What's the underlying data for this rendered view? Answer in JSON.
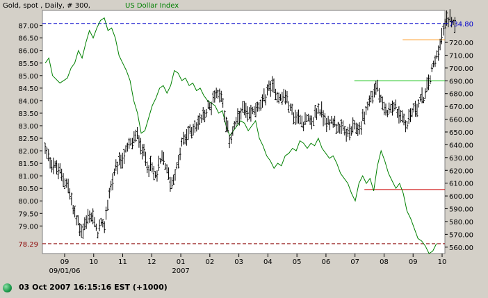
{
  "title": {
    "gold_part": "Gold, spot , Daily, # 300,",
    "usd_part": "US Dollar Index"
  },
  "status": {
    "text": "03 Oct 2007 16:15:16  EST (+1000)"
  },
  "colors": {
    "gold_bars": "#000000",
    "usd_line": "#008000",
    "resistance": "#0000cc",
    "support": "#8b0000",
    "orange_level": "#ff8c00",
    "green_level": "#00bb00",
    "red_level": "#cc0000"
  },
  "chart_data": {
    "type": "line",
    "title": "Gold, spot , Daily, # 300, US Dollar Index",
    "x_tick_labels": [
      "09",
      "10",
      "11",
      "12",
      "01",
      "02",
      "03",
      "04",
      "05",
      "06",
      "07",
      "08",
      "09",
      "10"
    ],
    "x_sub_labels": [
      "09/01/06",
      "2007"
    ],
    "left_axis": {
      "label": "US Dollar Index",
      "ylim": [
        77.9,
        87.6
      ],
      "ticks": [
        "87.00",
        "86.50",
        "86.00",
        "85.50",
        "85.00",
        "84.50",
        "84.00",
        "83.50",
        "83.00",
        "82.50",
        "82.00",
        "81.50",
        "81.00",
        "80.50",
        "80.00",
        "79.50",
        "79.00"
      ],
      "marker": "78.29"
    },
    "right_axis": {
      "label": "Gold",
      "ylim": [
        555,
        745
      ],
      "ticks": [
        "720.00",
        "710.00",
        "700.00",
        "690.00",
        "680.00",
        "670.00",
        "660.00",
        "650.00",
        "640.00",
        "630.00",
        "620.00",
        "610.00",
        "600.00",
        "590.00",
        "580.00",
        "570.00",
        "560.00"
      ],
      "marker": "734.80"
    },
    "reference_lines": [
      {
        "name": "resistance",
        "axis": "right",
        "value": 734.8,
        "style": "dashed",
        "from": 0.0,
        "to": 1.0
      },
      {
        "name": "support",
        "axis": "left",
        "value": 78.29,
        "style": "dashed",
        "from": 0.0,
        "to": 1.0
      },
      {
        "name": "orange_level",
        "axis": "right",
        "value": 722,
        "style": "solid",
        "from": 0.895,
        "to": 1.0
      },
      {
        "name": "green_level",
        "axis": "right",
        "value": 690,
        "style": "solid",
        "from": 0.775,
        "to": 1.0
      },
      {
        "name": "red_level",
        "axis": "right",
        "value": 605,
        "style": "solid",
        "from": 0.8,
        "to": 1.0
      }
    ],
    "series": [
      {
        "name": "US Dollar Index",
        "axis": "left",
        "kind": "line",
        "points": [
          [
            0.0,
            85.5
          ],
          [
            0.01,
            85.7
          ],
          [
            0.02,
            85.0
          ],
          [
            0.04,
            84.7
          ],
          [
            0.06,
            84.9
          ],
          [
            0.07,
            85.3
          ],
          [
            0.08,
            85.5
          ],
          [
            0.09,
            86.0
          ],
          [
            0.1,
            85.7
          ],
          [
            0.11,
            86.3
          ],
          [
            0.12,
            86.8
          ],
          [
            0.13,
            86.5
          ],
          [
            0.14,
            86.9
          ],
          [
            0.15,
            87.2
          ],
          [
            0.16,
            87.3
          ],
          [
            0.17,
            86.8
          ],
          [
            0.18,
            86.9
          ],
          [
            0.19,
            86.5
          ],
          [
            0.2,
            85.8
          ],
          [
            0.21,
            85.5
          ],
          [
            0.22,
            85.2
          ],
          [
            0.23,
            84.8
          ],
          [
            0.24,
            84.0
          ],
          [
            0.25,
            83.5
          ],
          [
            0.26,
            82.7
          ],
          [
            0.27,
            82.8
          ],
          [
            0.28,
            83.3
          ],
          [
            0.29,
            83.8
          ],
          [
            0.3,
            84.1
          ],
          [
            0.31,
            84.5
          ],
          [
            0.32,
            84.6
          ],
          [
            0.33,
            84.3
          ],
          [
            0.34,
            84.6
          ],
          [
            0.35,
            85.2
          ],
          [
            0.36,
            85.1
          ],
          [
            0.37,
            84.8
          ],
          [
            0.38,
            84.9
          ],
          [
            0.39,
            84.6
          ],
          [
            0.4,
            84.7
          ],
          [
            0.41,
            84.4
          ],
          [
            0.42,
            84.5
          ],
          [
            0.43,
            84.2
          ],
          [
            0.44,
            84.0
          ],
          [
            0.45,
            83.9
          ],
          [
            0.46,
            83.8
          ],
          [
            0.47,
            83.5
          ],
          [
            0.48,
            83.6
          ],
          [
            0.49,
            83.0
          ],
          [
            0.5,
            82.6
          ],
          [
            0.51,
            82.8
          ],
          [
            0.52,
            83.0
          ],
          [
            0.53,
            83.2
          ],
          [
            0.54,
            83.1
          ],
          [
            0.55,
            82.8
          ],
          [
            0.56,
            83.0
          ],
          [
            0.57,
            83.2
          ],
          [
            0.58,
            82.5
          ],
          [
            0.59,
            82.2
          ],
          [
            0.6,
            81.8
          ],
          [
            0.61,
            81.6
          ],
          [
            0.62,
            81.3
          ],
          [
            0.63,
            81.5
          ],
          [
            0.64,
            81.4
          ],
          [
            0.65,
            81.8
          ],
          [
            0.66,
            81.9
          ],
          [
            0.67,
            82.1
          ],
          [
            0.68,
            82.0
          ],
          [
            0.69,
            82.4
          ],
          [
            0.7,
            82.3
          ],
          [
            0.71,
            82.1
          ],
          [
            0.72,
            82.3
          ],
          [
            0.73,
            82.2
          ],
          [
            0.74,
            82.5
          ],
          [
            0.75,
            82.1
          ],
          [
            0.76,
            81.9
          ],
          [
            0.77,
            81.7
          ],
          [
            0.78,
            81.8
          ],
          [
            0.79,
            81.5
          ],
          [
            0.8,
            81.1
          ],
          [
            0.81,
            80.9
          ],
          [
            0.82,
            80.7
          ],
          [
            0.83,
            80.3
          ],
          [
            0.84,
            80.0
          ],
          [
            0.85,
            80.7
          ],
          [
            0.86,
            81.0
          ],
          [
            0.87,
            80.7
          ],
          [
            0.88,
            80.9
          ],
          [
            0.89,
            80.4
          ],
          [
            0.9,
            81.4
          ],
          [
            0.91,
            82.0
          ],
          [
            0.92,
            81.6
          ],
          [
            0.93,
            81.1
          ],
          [
            0.94,
            80.8
          ],
          [
            0.95,
            80.5
          ],
          [
            0.96,
            80.7
          ],
          [
            0.97,
            80.3
          ],
          [
            0.98,
            79.6
          ],
          [
            0.99,
            79.3
          ],
          [
            1.0,
            78.9
          ],
          [
            1.01,
            78.5
          ],
          [
            1.02,
            78.4
          ],
          [
            1.03,
            78.2
          ],
          [
            1.04,
            77.9
          ],
          [
            1.05,
            78.0
          ],
          [
            1.06,
            78.3
          ]
        ]
      },
      {
        "name": "Gold",
        "axis": "right",
        "kind": "ohlc",
        "path": [
          [
            0.0,
            637
          ],
          [
            0.02,
            625
          ],
          [
            0.04,
            618
          ],
          [
            0.06,
            610
          ],
          [
            0.08,
            585
          ],
          [
            0.1,
            572
          ],
          [
            0.12,
            585
          ],
          [
            0.13,
            583
          ],
          [
            0.14,
            570
          ],
          [
            0.15,
            577
          ],
          [
            0.16,
            575
          ],
          [
            0.17,
            597
          ],
          [
            0.18,
            610
          ],
          [
            0.19,
            618
          ],
          [
            0.2,
            625
          ],
          [
            0.21,
            630
          ],
          [
            0.22,
            635
          ],
          [
            0.23,
            640
          ],
          [
            0.24,
            643
          ],
          [
            0.25,
            648
          ],
          [
            0.26,
            640
          ],
          [
            0.27,
            630
          ],
          [
            0.28,
            625
          ],
          [
            0.29,
            620
          ],
          [
            0.3,
            615
          ],
          [
            0.31,
            625
          ],
          [
            0.32,
            630
          ],
          [
            0.33,
            620
          ],
          [
            0.34,
            610
          ],
          [
            0.35,
            615
          ],
          [
            0.36,
            625
          ],
          [
            0.37,
            640
          ],
          [
            0.38,
            645
          ],
          [
            0.39,
            650
          ],
          [
            0.4,
            652
          ],
          [
            0.41,
            655
          ],
          [
            0.42,
            660
          ],
          [
            0.43,
            662
          ],
          [
            0.44,
            668
          ],
          [
            0.45,
            672
          ],
          [
            0.46,
            680
          ],
          [
            0.47,
            683
          ],
          [
            0.48,
            675
          ],
          [
            0.49,
            655
          ],
          [
            0.5,
            645
          ],
          [
            0.51,
            652
          ],
          [
            0.52,
            658
          ],
          [
            0.53,
            665
          ],
          [
            0.54,
            668
          ],
          [
            0.55,
            660
          ],
          [
            0.56,
            665
          ],
          [
            0.57,
            670
          ],
          [
            0.58,
            668
          ],
          [
            0.59,
            672
          ],
          [
            0.6,
            682
          ],
          [
            0.61,
            686
          ],
          [
            0.62,
            684
          ],
          [
            0.63,
            680
          ],
          [
            0.64,
            675
          ],
          [
            0.65,
            680
          ],
          [
            0.66,
            670
          ],
          [
            0.67,
            665
          ],
          [
            0.68,
            660
          ],
          [
            0.69,
            662
          ],
          [
            0.7,
            658
          ],
          [
            0.71,
            660
          ],
          [
            0.72,
            655
          ],
          [
            0.73,
            663
          ],
          [
            0.74,
            668
          ],
          [
            0.75,
            665
          ],
          [
            0.76,
            660
          ],
          [
            0.77,
            655
          ],
          [
            0.78,
            660
          ],
          [
            0.79,
            655
          ],
          [
            0.8,
            650
          ],
          [
            0.81,
            652
          ],
          [
            0.82,
            648
          ],
          [
            0.83,
            650
          ],
          [
            0.84,
            655
          ],
          [
            0.85,
            650
          ],
          [
            0.86,
            660
          ],
          [
            0.87,
            668
          ],
          [
            0.88,
            675
          ],
          [
            0.89,
            682
          ],
          [
            0.9,
            685
          ],
          [
            0.91,
            672
          ],
          [
            0.92,
            665
          ],
          [
            0.93,
            668
          ],
          [
            0.94,
            672
          ],
          [
            0.95,
            668
          ],
          [
            0.96,
            664
          ],
          [
            0.97,
            660
          ],
          [
            0.98,
            655
          ],
          [
            0.99,
            665
          ],
          [
            1.0,
            668
          ],
          [
            1.01,
            672
          ],
          [
            1.02,
            675
          ],
          [
            1.03,
            680
          ],
          [
            1.04,
            690
          ],
          [
            1.05,
            700
          ],
          [
            1.06,
            710
          ],
          [
            1.07,
            720
          ],
          [
            1.08,
            730
          ],
          [
            1.09,
            738
          ],
          [
            1.1,
            741
          ],
          [
            1.11,
            735
          ]
        ]
      }
    ]
  }
}
